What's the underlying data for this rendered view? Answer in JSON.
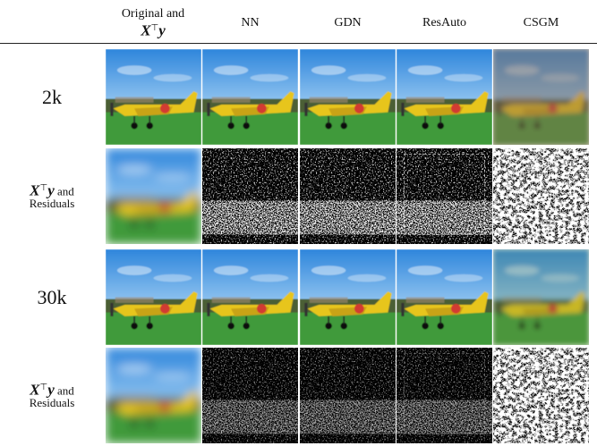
{
  "first_column": {
    "text": "Original and",
    "math": {
      "base": "X",
      "sup": "⊤",
      "var": "y"
    }
  },
  "columns": [
    "NN",
    "GDN",
    "ResAuto",
    "CSGM"
  ],
  "rows": [
    {
      "label": "2k"
    },
    {
      "math": {
        "base": "X",
        "sup": "⊤",
        "var": "y"
      },
      "text": "and",
      "subtext": "Residuals"
    },
    {
      "label": "30k"
    },
    {
      "math": {
        "base": "X",
        "sup": "⊤",
        "var": "y"
      },
      "text": "and",
      "subtext": "Residuals"
    }
  ]
}
